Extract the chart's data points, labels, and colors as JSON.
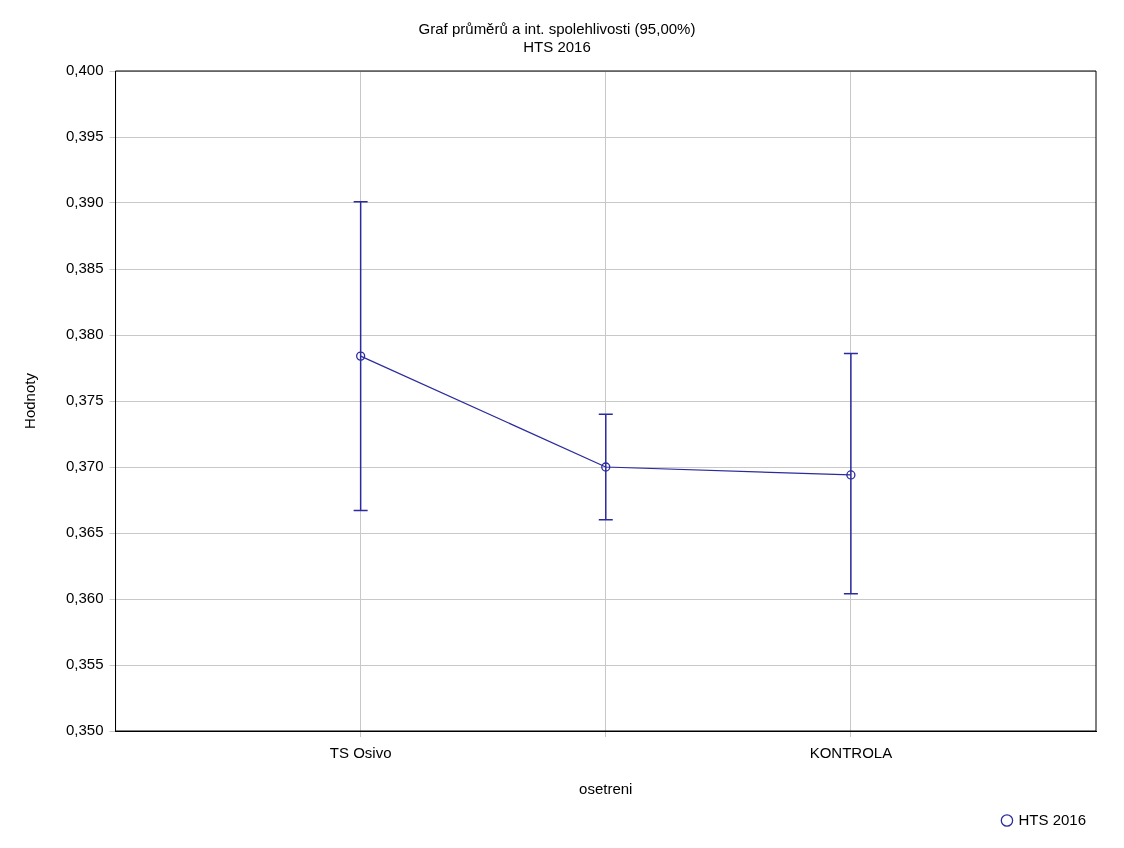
{
  "chart_data": {
    "type": "line",
    "title": "Graf průměrů a int. spolehlivosti (95,00%)",
    "subtitle": "HTS 2016",
    "xlabel": "osetreni",
    "ylabel": "Hodnoty",
    "categories": [
      "TS Osivo",
      null,
      "KONTROLA"
    ],
    "series": [
      {
        "name": "HTS 2016",
        "color": "#2b2b9e",
        "values": [
          0.3784,
          0.37,
          0.3694
        ],
        "errors": [
          [
            0.3667,
            0.3901
          ],
          [
            0.366,
            0.374
          ],
          [
            0.3604,
            0.3786
          ]
        ]
      }
    ],
    "ylim": [
      0.35,
      0.4
    ],
    "yticks": [
      {
        "value": 0.35,
        "label": "0,350"
      },
      {
        "value": 0.355,
        "label": "0,355"
      },
      {
        "value": 0.36,
        "label": "0,360"
      },
      {
        "value": 0.365,
        "label": "0,365"
      },
      {
        "value": 0.37,
        "label": "0,370"
      },
      {
        "value": 0.375,
        "label": "0,375"
      },
      {
        "value": 0.38,
        "label": "0,380"
      },
      {
        "value": 0.385,
        "label": "0,385"
      },
      {
        "value": 0.39,
        "label": "0,390"
      },
      {
        "value": 0.395,
        "label": "0,395"
      },
      {
        "value": 0.4,
        "label": "0,400"
      }
    ],
    "grid": true,
    "legend": "bottom right",
    "marker": "circle",
    "line_style": "solid"
  }
}
